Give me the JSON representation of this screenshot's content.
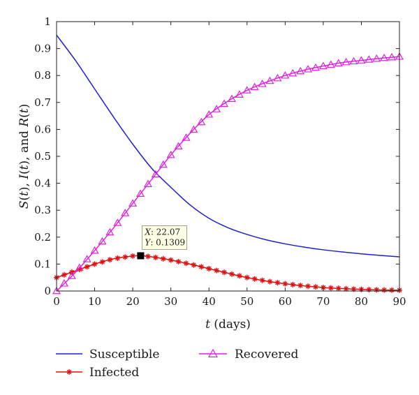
{
  "chart_data": {
    "type": "line",
    "xlabel_var": "t",
    "xlabel_unit": " (days)",
    "ylabel_parts": [
      "S",
      "(",
      "t",
      "), ",
      "I",
      "(",
      "t",
      "), and ",
      "R",
      "(",
      "t",
      ")"
    ],
    "xlim": [
      0,
      90
    ],
    "ylim": [
      0,
      1
    ],
    "x_ticks": [
      "0",
      "10",
      "20",
      "30",
      "40",
      "50",
      "60",
      "70",
      "80",
      "90"
    ],
    "y_ticks": [
      "0",
      "0.1",
      "0.2",
      "0.3",
      "0.4",
      "0.5",
      "0.6",
      "0.7",
      "0.8",
      "0.9",
      "1"
    ],
    "grid": false,
    "legend_position": "bottom",
    "series": [
      {
        "name": "Susceptible",
        "color": "#1f1fcf",
        "marker": "none",
        "x": [
          0,
          5,
          10,
          15,
          20,
          25,
          30,
          35,
          40,
          45,
          50,
          55,
          60,
          65,
          70,
          75,
          80,
          85,
          90
        ],
        "y": [
          0.95,
          0.855,
          0.75,
          0.645,
          0.545,
          0.455,
          0.385,
          0.32,
          0.27,
          0.235,
          0.21,
          0.19,
          0.175,
          0.163,
          0.153,
          0.145,
          0.138,
          0.132,
          0.127
        ]
      },
      {
        "name": "Infected",
        "color": "#e01010",
        "marker": "asterisk",
        "x": [
          0,
          5,
          10,
          15,
          20,
          22,
          25,
          30,
          35,
          40,
          45,
          50,
          55,
          60,
          65,
          70,
          75,
          80,
          85,
          90
        ],
        "y": [
          0.05,
          0.075,
          0.1,
          0.12,
          0.13,
          0.131,
          0.127,
          0.115,
          0.1,
          0.083,
          0.066,
          0.05,
          0.037,
          0.027,
          0.019,
          0.013,
          0.009,
          0.006,
          0.004,
          0.003
        ]
      },
      {
        "name": "Recovered",
        "color": "#e020e0",
        "marker": "triangle",
        "x": [
          0,
          5,
          10,
          15,
          20,
          25,
          30,
          35,
          40,
          45,
          50,
          55,
          60,
          65,
          70,
          75,
          80,
          85,
          90
        ],
        "y": [
          0,
          0.07,
          0.15,
          0.235,
          0.325,
          0.415,
          0.505,
          0.585,
          0.655,
          0.705,
          0.745,
          0.775,
          0.8,
          0.82,
          0.835,
          0.848,
          0.856,
          0.864,
          0.87
        ]
      }
    ],
    "datatip": {
      "x": 22.07,
      "y": 0.1309,
      "line1_key": "X",
      "line1_val": ": 22.07",
      "line2_key": "Y",
      "line2_val": ": 0.1309"
    }
  }
}
